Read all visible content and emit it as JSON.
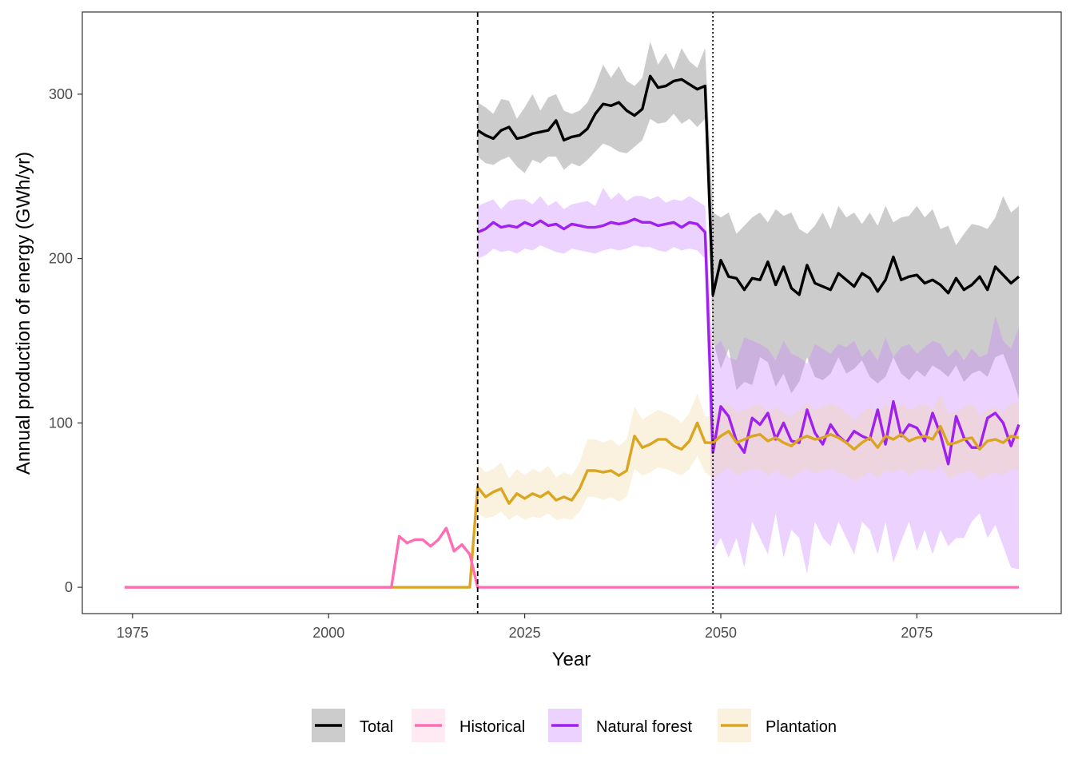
{
  "chart_data": {
    "type": "line",
    "xlabel": "Year",
    "ylabel": "Annual production of energy (GWh/yr)",
    "xlim": [
      1968.6,
      2093.4
    ],
    "ylim": [
      -16,
      350
    ],
    "x_ticks": [
      1975,
      2000,
      2025,
      2050,
      2075
    ],
    "y_ticks": [
      0,
      100,
      200,
      300
    ],
    "grid": false,
    "legend_position": "bottom",
    "vlines": [
      {
        "x": 2019,
        "style": "dashed"
      },
      {
        "x": 2049,
        "style": "dotted"
      }
    ],
    "series": [
      {
        "name": "Total",
        "color": "#000000",
        "band_color": "#999999",
        "x": [
          2019,
          2020,
          2021,
          2022,
          2023,
          2024,
          2025,
          2026,
          2027,
          2028,
          2029,
          2030,
          2031,
          2032,
          2033,
          2034,
          2035,
          2036,
          2037,
          2038,
          2039,
          2040,
          2041,
          2042,
          2043,
          2044,
          2045,
          2046,
          2047,
          2048,
          2049,
          2050,
          2051,
          2052,
          2053,
          2054,
          2055,
          2056,
          2057,
          2058,
          2059,
          2060,
          2061,
          2062,
          2063,
          2064,
          2065,
          2066,
          2067,
          2068,
          2069,
          2070,
          2071,
          2072,
          2073,
          2074,
          2075,
          2076,
          2077,
          2078,
          2079,
          2080,
          2081,
          2082,
          2083,
          2084,
          2085,
          2086,
          2087,
          2088
        ],
        "values": [
          278,
          275,
          273,
          278,
          280,
          273,
          274,
          276,
          277,
          278,
          284,
          272,
          274,
          275,
          279,
          288,
          294,
          293,
          295,
          290,
          287,
          291,
          311,
          304,
          305,
          308,
          309,
          306,
          303,
          305,
          178,
          199,
          189,
          188,
          181,
          188,
          187,
          198,
          184,
          195,
          182,
          178,
          196,
          185,
          183,
          181,
          191,
          187,
          183,
          191,
          188,
          180,
          187,
          201,
          187,
          189,
          190,
          185,
          187,
          184,
          179,
          188,
          181,
          184,
          189,
          181,
          195,
          190,
          185,
          189
        ],
        "lower": [
          262,
          258,
          257,
          260,
          262,
          256,
          252,
          260,
          258,
          262,
          262,
          254,
          258,
          256,
          260,
          265,
          270,
          268,
          265,
          264,
          268,
          272,
          285,
          282,
          283,
          288,
          282,
          285,
          280,
          285,
          150,
          133,
          145,
          120,
          125,
          123,
          140,
          137,
          122,
          130,
          118,
          125,
          140,
          128,
          126,
          130,
          140,
          130,
          133,
          138,
          128,
          124,
          128,
          140,
          130,
          126,
          132,
          128,
          135,
          132,
          128,
          135,
          125,
          130,
          132,
          128,
          140,
          142,
          130,
          115
        ],
        "upper": [
          295,
          292,
          288,
          297,
          296,
          285,
          292,
          300,
          290,
          298,
          300,
          290,
          288,
          290,
          295,
          305,
          318,
          310,
          317,
          308,
          305,
          310,
          332,
          318,
          325,
          315,
          328,
          320,
          316,
          328,
          228,
          225,
          228,
          215,
          220,
          225,
          228,
          222,
          230,
          226,
          228,
          218,
          215,
          220,
          228,
          218,
          232,
          225,
          228,
          221,
          228,
          220,
          232,
          222,
          225,
          226,
          232,
          225,
          230,
          218,
          220,
          208,
          215,
          221,
          220,
          218,
          225,
          238,
          228,
          232
        ]
      },
      {
        "name": "Historical",
        "color": "#ff6eb4",
        "band_color": "#ffc0dd",
        "x": [
          1974,
          1975,
          1980,
          1985,
          1990,
          1995,
          2000,
          2005,
          2008,
          2009,
          2010,
          2011,
          2012,
          2013,
          2014,
          2015,
          2016,
          2017,
          2018,
          2019,
          2020,
          2030,
          2040,
          2050,
          2060,
          2070,
          2080,
          2088
        ],
        "values": [
          0,
          0,
          0,
          0,
          0,
          0,
          0,
          0,
          0,
          31,
          27,
          29,
          29,
          25,
          29,
          36,
          22,
          26,
          20,
          0,
          0,
          0,
          0,
          0,
          0,
          0,
          0,
          0
        ]
      },
      {
        "name": "Natural forest",
        "color": "#a020f0",
        "band_color": "#c77dff",
        "x": [
          2019,
          2020,
          2021,
          2022,
          2023,
          2024,
          2025,
          2026,
          2027,
          2028,
          2029,
          2030,
          2031,
          2032,
          2033,
          2034,
          2035,
          2036,
          2037,
          2038,
          2039,
          2040,
          2041,
          2042,
          2043,
          2044,
          2045,
          2046,
          2047,
          2048,
          2049,
          2050,
          2051,
          2052,
          2053,
          2054,
          2055,
          2056,
          2057,
          2058,
          2059,
          2060,
          2061,
          2062,
          2063,
          2064,
          2065,
          2066,
          2067,
          2068,
          2069,
          2070,
          2071,
          2072,
          2073,
          2074,
          2075,
          2076,
          2077,
          2078,
          2079,
          2080,
          2081,
          2082,
          2083,
          2084,
          2085,
          2086,
          2087,
          2088
        ],
        "values": [
          216,
          218,
          222,
          219,
          220,
          219,
          222,
          220,
          223,
          220,
          221,
          218,
          221,
          220,
          219,
          219,
          220,
          222,
          221,
          222,
          224,
          222,
          222,
          220,
          221,
          222,
          219,
          222,
          221,
          216,
          82,
          110,
          104,
          89,
          82,
          103,
          99,
          106,
          90,
          100,
          89,
          88,
          108,
          94,
          87,
          99,
          92,
          88,
          95,
          92,
          90,
          108,
          87,
          113,
          92,
          99,
          97,
          89,
          106,
          93,
          75,
          104,
          91,
          85,
          85,
          103,
          106,
          100,
          86,
          99
        ],
        "lower": [
          200,
          202,
          206,
          204,
          205,
          203,
          206,
          205,
          208,
          206,
          204,
          203,
          206,
          205,
          204,
          203,
          205,
          206,
          205,
          206,
          208,
          207,
          207,
          205,
          204,
          207,
          205,
          206,
          205,
          200,
          22,
          30,
          18,
          30,
          12,
          40,
          30,
          20,
          45,
          18,
          35,
          30,
          8,
          40,
          30,
          25,
          40,
          30,
          20,
          40,
          35,
          20,
          40,
          15,
          28,
          40,
          22,
          35,
          20,
          35,
          25,
          30,
          30,
          40,
          45,
          30,
          38,
          25,
          12,
          11
        ],
        "upper": [
          232,
          234,
          236,
          230,
          235,
          236,
          236,
          233,
          238,
          232,
          235,
          230,
          233,
          234,
          235,
          232,
          243,
          236,
          240,
          235,
          238,
          238,
          236,
          238,
          234,
          236,
          235,
          238,
          235,
          232,
          145,
          150,
          140,
          138,
          152,
          150,
          148,
          145,
          138,
          150,
          142,
          140,
          136,
          148,
          145,
          142,
          148,
          146,
          150,
          140,
          145,
          138,
          152,
          140,
          146,
          148,
          142,
          146,
          150,
          148,
          140,
          145,
          138,
          145,
          140,
          142,
          165,
          150,
          145,
          158
        ]
      },
      {
        "name": "Plantation",
        "color": "#daa520",
        "band_color": "#f2d9a0",
        "x": [
          1974,
          1980,
          1990,
          2000,
          2010,
          2018,
          2019,
          2020,
          2021,
          2022,
          2023,
          2024,
          2025,
          2026,
          2027,
          2028,
          2029,
          2030,
          2031,
          2032,
          2033,
          2034,
          2035,
          2036,
          2037,
          2038,
          2039,
          2040,
          2041,
          2042,
          2043,
          2044,
          2045,
          2046,
          2047,
          2048,
          2049,
          2050,
          2051,
          2052,
          2053,
          2054,
          2055,
          2056,
          2057,
          2058,
          2059,
          2060,
          2061,
          2062,
          2063,
          2064,
          2065,
          2066,
          2067,
          2068,
          2069,
          2070,
          2071,
          2072,
          2073,
          2074,
          2075,
          2076,
          2077,
          2078,
          2079,
          2080,
          2081,
          2082,
          2083,
          2084,
          2085,
          2086,
          2087,
          2088
        ],
        "values": [
          0,
          0,
          0,
          0,
          0,
          0,
          61,
          55,
          58,
          60,
          51,
          57,
          54,
          57,
          55,
          58,
          53,
          55,
          53,
          60,
          71,
          71,
          70,
          71,
          68,
          71,
          92,
          85,
          87,
          90,
          90,
          86,
          84,
          89,
          100,
          88,
          88,
          92,
          95,
          88,
          90,
          92,
          93,
          89,
          91,
          88,
          86,
          90,
          92,
          90,
          91,
          93,
          91,
          88,
          84,
          88,
          91,
          85,
          92,
          90,
          93,
          89,
          91,
          92,
          90,
          98,
          87,
          88,
          90,
          91,
          84,
          89,
          90,
          88,
          92,
          91
        ],
        "lower": [
          null,
          null,
          null,
          null,
          null,
          null,
          45,
          42,
          43,
          46,
          41,
          44,
          41,
          43,
          42,
          45,
          41,
          42,
          41,
          46,
          55,
          55,
          53,
          55,
          52,
          55,
          72,
          68,
          70,
          73,
          72,
          70,
          68,
          72,
          80,
          70,
          66,
          70,
          73,
          68,
          70,
          72,
          72,
          68,
          71,
          68,
          66,
          70,
          72,
          69,
          71,
          72,
          70,
          68,
          65,
          67,
          71,
          66,
          71,
          70,
          72,
          68,
          71,
          72,
          70,
          75,
          66,
          68,
          70,
          71,
          65,
          68,
          70,
          68,
          72,
          71
        ],
        "upper": [
          null,
          null,
          null,
          null,
          null,
          null,
          75,
          70,
          72,
          76,
          66,
          72,
          68,
          72,
          70,
          74,
          67,
          70,
          68,
          76,
          90,
          90,
          88,
          90,
          86,
          90,
          110,
          102,
          105,
          108,
          106,
          104,
          100,
          106,
          118,
          104,
          104,
          110,
          112,
          106,
          108,
          110,
          112,
          106,
          110,
          106,
          104,
          108,
          112,
          108,
          110,
          112,
          110,
          106,
          102,
          106,
          110,
          104,
          112,
          108,
          112,
          108,
          110,
          112,
          108,
          118,
          106,
          106,
          110,
          112,
          104,
          108,
          110,
          106,
          112,
          112
        ]
      }
    ]
  }
}
